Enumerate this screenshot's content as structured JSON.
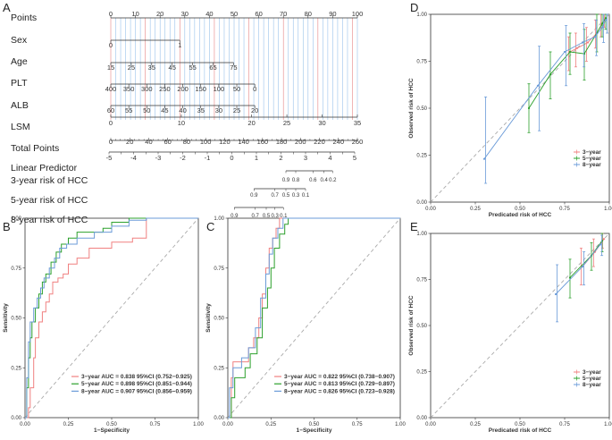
{
  "panel_letters": {
    "A": "A",
    "B": "B",
    "C": "C",
    "D": "D",
    "E": "E"
  },
  "colors": {
    "red": "#f08080",
    "green": "#2ca02c",
    "blue": "#6b9bd8",
    "dash": "#aaaaaa",
    "gridRed": "#e06666",
    "gridBlue": "#7fb3e6"
  },
  "nomogram": {
    "rows": [
      {
        "label": "Points",
        "ticks": [
          {
            "v": 0,
            "t": "0"
          },
          {
            "v": 10,
            "t": "10"
          },
          {
            "v": 20,
            "t": "20"
          },
          {
            "v": 30,
            "t": "30"
          },
          {
            "v": 40,
            "t": "40"
          },
          {
            "v": 50,
            "t": "50"
          },
          {
            "v": 60,
            "t": "60"
          },
          {
            "v": 70,
            "t": "70"
          },
          {
            "v": 80,
            "t": "80"
          },
          {
            "v": 90,
            "t": "90"
          },
          {
            "v": 100,
            "t": "100"
          }
        ]
      },
      {
        "label": "Sex",
        "ticks": [
          {
            "v": 0,
            "t": "0"
          },
          {
            "v": 28,
            "t": "1"
          }
        ]
      },
      {
        "label": "Age",
        "ticks": [
          {
            "v": 0,
            "t": "15"
          },
          {
            "v": 8.3,
            "t": "25"
          },
          {
            "v": 16.6,
            "t": "35"
          },
          {
            "v": 24.9,
            "t": "45"
          },
          {
            "v": 33.2,
            "t": "55"
          },
          {
            "v": 41.5,
            "t": "65"
          },
          {
            "v": 49.8,
            "t": "75"
          }
        ]
      },
      {
        "label": "PLT",
        "ticks": [
          {
            "v": 0,
            "t": "400"
          },
          {
            "v": 7.3,
            "t": "350"
          },
          {
            "v": 14.6,
            "t": "300"
          },
          {
            "v": 21.9,
            "t": "250"
          },
          {
            "v": 29.2,
            "t": "200"
          },
          {
            "v": 36.5,
            "t": "150"
          },
          {
            "v": 43.8,
            "t": "100"
          },
          {
            "v": 51.1,
            "t": "50"
          },
          {
            "v": 58.4,
            "t": "0"
          }
        ]
      },
      {
        "label": "ALB",
        "ticks": [
          {
            "v": 0,
            "t": "60"
          },
          {
            "v": 7.3,
            "t": "55"
          },
          {
            "v": 14.6,
            "t": "50"
          },
          {
            "v": 21.9,
            "t": "45"
          },
          {
            "v": 29.2,
            "t": "40"
          },
          {
            "v": 36.5,
            "t": "35"
          },
          {
            "v": 43.8,
            "t": "30"
          },
          {
            "v": 51.1,
            "t": "25"
          },
          {
            "v": 58.4,
            "t": "20"
          }
        ]
      },
      {
        "label": "LSM",
        "ticks": [
          {
            "v": 0,
            "t": "0"
          },
          {
            "v": 28.6,
            "t": "10"
          },
          {
            "v": 57.1,
            "t": "20"
          },
          {
            "v": 71.4,
            "t": "25"
          },
          {
            "v": 85.7,
            "t": "30"
          },
          {
            "v": 100,
            "t": "35"
          }
        ]
      }
    ],
    "total": {
      "label": "Total Points",
      "ticks": [
        {
          "v": 0,
          "t": "0"
        },
        {
          "v": 20,
          "t": "20"
        },
        {
          "v": 40,
          "t": "40"
        },
        {
          "v": 60,
          "t": "60"
        },
        {
          "v": 80,
          "t": "80"
        },
        {
          "v": 100,
          "t": "100"
        },
        {
          "v": 120,
          "t": "120"
        },
        {
          "v": 140,
          "t": "140"
        },
        {
          "v": 160,
          "t": "160"
        },
        {
          "v": 180,
          "t": "180"
        },
        {
          "v": 200,
          "t": "200"
        },
        {
          "v": 220,
          "t": "220"
        },
        {
          "v": 240,
          "t": "240"
        },
        {
          "v": 260,
          "t": "260"
        }
      ]
    },
    "lp": {
      "label": "Linear Predictor",
      "ticks": [
        {
          "v": -5,
          "t": "-5"
        },
        {
          "v": -4,
          "t": "-4"
        },
        {
          "v": -3,
          "t": "-3"
        },
        {
          "v": -2,
          "t": "-2"
        },
        {
          "v": -1,
          "t": "-1"
        },
        {
          "v": 0,
          "t": "0"
        },
        {
          "v": 1,
          "t": "1"
        },
        {
          "v": 2,
          "t": "2"
        },
        {
          "v": 3,
          "t": "3"
        },
        {
          "v": 4,
          "t": "4"
        },
        {
          "v": 5,
          "t": "5"
        }
      ]
    },
    "risk3": {
      "label": "3-year risk of HCC",
      "ticks": [
        {
          "v": 2.2,
          "t": "0.9"
        },
        {
          "v": 2.6,
          "t": "0.8"
        },
        {
          "v": 3.3,
          "t": "0.6"
        },
        {
          "v": 3.75,
          "t": "0.4"
        },
        {
          "v": 4.1,
          "t": "0.2"
        }
      ]
    },
    "risk5": {
      "label": "5-year risk of HCC",
      "ticks": [
        {
          "v": 0.9,
          "t": "0.9"
        },
        {
          "v": 1.75,
          "t": "0.7"
        },
        {
          "v": 2.2,
          "t": "0.5"
        },
        {
          "v": 2.6,
          "t": "0.3"
        },
        {
          "v": 3.0,
          "t": "0.1"
        }
      ]
    },
    "risk8": {
      "label": "8-year risk of HCC",
      "ticks": [
        {
          "v": 0.1,
          "t": "0.9"
        },
        {
          "v": 0.95,
          "t": "0.7"
        },
        {
          "v": 1.4,
          "t": "0.5"
        },
        {
          "v": 1.75,
          "t": "0.3"
        },
        {
          "v": 2.1,
          "t": "0.1"
        }
      ]
    }
  },
  "chart_data": [
    {
      "type": "line",
      "panel": "B",
      "xlabel": "1−Specificity",
      "ylabel": "Sensitivity",
      "xlim": [
        0,
        1
      ],
      "ylim": [
        0,
        1
      ],
      "xticks": [
        "0.00",
        "0.25",
        "0.50",
        "0.75",
        "1.00"
      ],
      "yticks": [
        "0.00",
        "0.25",
        "0.50",
        "0.75",
        "1.00"
      ],
      "series": [
        {
          "name": "3−year",
          "color": "red",
          "legend": "3−year AUC = 0.838 95%CI (0.752−0.925)",
          "x": [
            0,
            0.02,
            0.03,
            0.05,
            0.06,
            0.08,
            0.1,
            0.12,
            0.14,
            0.16,
            0.19,
            0.22,
            0.25,
            0.3,
            0.37,
            0.45,
            0.5,
            0.62,
            0.7,
            1
          ],
          "y": [
            0,
            0.05,
            0.15,
            0.3,
            0.4,
            0.48,
            0.53,
            0.58,
            0.62,
            0.68,
            0.7,
            0.72,
            0.77,
            0.8,
            0.85,
            0.85,
            0.88,
            0.9,
            1,
            1
          ]
        },
        {
          "name": "5−year",
          "color": "green",
          "legend": "5−year AUC = 0.898 95%CI (0.851−0.944)",
          "x": [
            0,
            0.01,
            0.02,
            0.03,
            0.04,
            0.06,
            0.08,
            0.1,
            0.12,
            0.15,
            0.18,
            0.21,
            0.25,
            0.3,
            0.45,
            0.5,
            0.6,
            1
          ],
          "y": [
            0,
            0.15,
            0.3,
            0.4,
            0.48,
            0.55,
            0.62,
            0.68,
            0.72,
            0.78,
            0.83,
            0.87,
            0.9,
            0.93,
            0.95,
            0.98,
            1,
            1
          ]
        },
        {
          "name": "8−year",
          "color": "blue",
          "legend": "8−year AUC = 0.907 95%CI (0.856−0.959)",
          "x": [
            0,
            0.01,
            0.02,
            0.03,
            0.05,
            0.07,
            0.09,
            0.11,
            0.14,
            0.17,
            0.2,
            0.24,
            0.3,
            0.4,
            0.5,
            0.6,
            0.7,
            1
          ],
          "y": [
            0,
            0.2,
            0.38,
            0.48,
            0.55,
            0.6,
            0.65,
            0.7,
            0.75,
            0.8,
            0.85,
            0.87,
            0.9,
            0.93,
            0.96,
            0.99,
            1,
            1
          ]
        }
      ]
    },
    {
      "type": "line",
      "panel": "C",
      "xlabel": "1−Specificity",
      "ylabel": "Sensitivity",
      "xlim": [
        0,
        1
      ],
      "ylim": [
        0,
        1
      ],
      "xticks": [
        "0.00",
        "0.25",
        "0.50",
        "0.75",
        "1.00"
      ],
      "yticks": [
        "0.00",
        "0.25",
        "0.50",
        "0.75",
        "1.00"
      ],
      "series": [
        {
          "name": "3−year",
          "color": "red",
          "legend": "3−year AUC = 0.822 95%CI (0.738−0.907)",
          "x": [
            0,
            0.02,
            0.03,
            0.1,
            0.12,
            0.15,
            0.18,
            0.2,
            0.22,
            0.24,
            0.26,
            0.28,
            0.3,
            0.32,
            0.35,
            1
          ],
          "y": [
            0,
            0.2,
            0.28,
            0.28,
            0.35,
            0.4,
            0.5,
            0.62,
            0.75,
            0.85,
            0.9,
            0.95,
            1,
            1,
            1,
            1
          ]
        },
        {
          "name": "5−year",
          "color": "green",
          "legend": "5−year AUC = 0.813 95%CI (0.729−0.897)",
          "x": [
            0,
            0.02,
            0.04,
            0.1,
            0.13,
            0.17,
            0.2,
            0.23,
            0.25,
            0.27,
            0.3,
            0.33,
            0.35,
            1
          ],
          "y": [
            0,
            0.1,
            0.2,
            0.25,
            0.32,
            0.4,
            0.55,
            0.65,
            0.75,
            0.85,
            0.92,
            0.97,
            1,
            1
          ]
        },
        {
          "name": "8−year",
          "color": "blue",
          "legend": "8−year AUC = 0.826 95%CI (0.723−0.928)",
          "x": [
            0,
            0.01,
            0.03,
            0.08,
            0.12,
            0.16,
            0.19,
            0.22,
            0.24,
            0.26,
            0.29,
            0.32,
            0.36,
            1
          ],
          "y": [
            0,
            0.15,
            0.25,
            0.3,
            0.35,
            0.45,
            0.6,
            0.72,
            0.82,
            0.9,
            0.95,
            1,
            1,
            1
          ]
        }
      ]
    },
    {
      "type": "line",
      "panel": "D",
      "xlabel": "Predicated risk of HCC",
      "ylabel": "Observed  risk of HCC",
      "xlim": [
        0,
        1
      ],
      "ylim": [
        0,
        1
      ],
      "xticks": [
        "0.00",
        "0.25",
        "0.50",
        "0.75",
        "1.00"
      ],
      "yticks": [
        "0.00",
        "0.25",
        "0.50",
        "0.75",
        "1.00"
      ],
      "legend": [
        "3−year",
        "5−year",
        "8−year"
      ],
      "series": [
        {
          "name": "3−year",
          "color": "red",
          "x": [
            0.78,
            0.82,
            0.88,
            0.93,
            0.96,
            0.98
          ],
          "y": [
            0.8,
            0.82,
            0.85,
            0.9,
            0.95,
            0.98
          ],
          "lo": [
            0.7,
            0.72,
            0.75,
            0.82,
            0.88,
            0.93
          ],
          "hi": [
            0.88,
            0.9,
            0.93,
            0.97,
            1.0,
            1.0
          ]
        },
        {
          "name": "5−year",
          "color": "green",
          "x": [
            0.55,
            0.67,
            0.78,
            0.86,
            0.93,
            0.96,
            0.98
          ],
          "y": [
            0.5,
            0.68,
            0.8,
            0.79,
            0.9,
            0.95,
            0.98
          ],
          "lo": [
            0.37,
            0.55,
            0.68,
            0.65,
            0.8,
            0.88,
            0.92
          ],
          "hi": [
            0.63,
            0.8,
            0.9,
            0.92,
            1.0,
            1.0,
            1.0
          ]
        },
        {
          "name": "8−year",
          "color": "blue",
          "x": [
            0.3,
            0.6,
            0.75,
            0.85,
            0.92,
            0.96,
            0.98
          ],
          "y": [
            0.23,
            0.62,
            0.8,
            0.85,
            0.88,
            0.93,
            0.97
          ],
          "lo": [
            0.1,
            0.38,
            0.62,
            0.72,
            0.78,
            0.85,
            0.9
          ],
          "hi": [
            0.56,
            0.83,
            0.94,
            0.95,
            0.97,
            1.0,
            1.0
          ]
        }
      ]
    },
    {
      "type": "line",
      "panel": "E",
      "xlabel": "Predicated risk of HCC",
      "ylabel": "Observed  risk of HCC",
      "xlim": [
        0,
        1
      ],
      "ylim": [
        0,
        1
      ],
      "xticks": [
        "0.00",
        "0.25",
        "0.50",
        "0.75",
        "1.00"
      ],
      "yticks": [
        "0.00",
        "0.25",
        "0.50",
        "0.75",
        "1.00"
      ],
      "legend": [
        "3−year",
        "5−year",
        "8−year"
      ],
      "series": [
        {
          "name": "3−year",
          "color": "red",
          "x": [
            0.85,
            0.92,
            0.97
          ],
          "y": [
            0.82,
            0.9,
            0.97
          ],
          "lo": [
            0.72,
            0.82,
            0.92
          ],
          "hi": [
            0.92,
            0.97,
            1.0
          ]
        },
        {
          "name": "5−year",
          "color": "green",
          "x": [
            0.78,
            0.9,
            0.96
          ],
          "y": [
            0.76,
            0.88,
            0.96
          ],
          "lo": [
            0.65,
            0.8,
            0.9
          ],
          "hi": [
            0.86,
            0.95,
            1.0
          ]
        },
        {
          "name": "8−year",
          "color": "blue",
          "x": [
            0.7,
            0.85,
            0.95
          ],
          "y": [
            0.67,
            0.82,
            0.94
          ],
          "lo": [
            0.52,
            0.72,
            0.88
          ],
          "hi": [
            0.83,
            0.9,
            0.99
          ]
        }
      ]
    }
  ]
}
